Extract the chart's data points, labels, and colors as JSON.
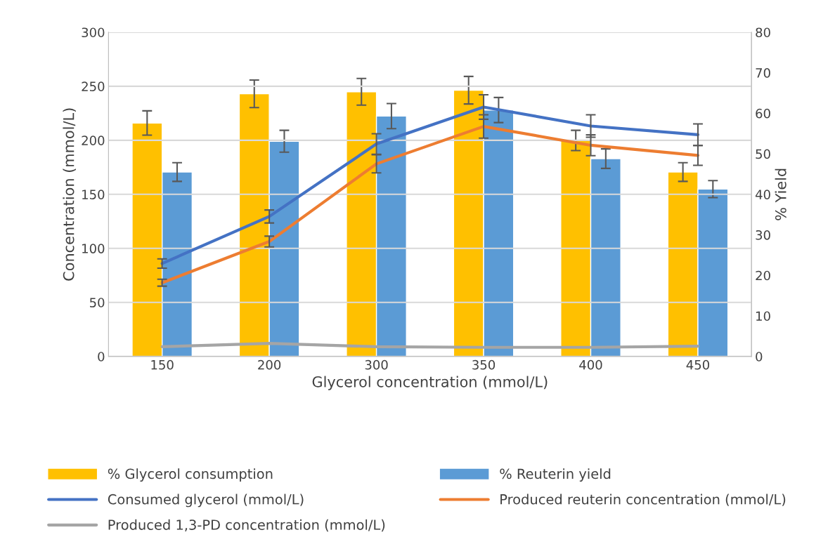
{
  "chart_data": {
    "type": "bar",
    "xlabel": "Glycerol concentration (mmol/L)",
    "ylabel": "Concentration (mmol/L)",
    "y2label": "% Yield",
    "categories": [
      "150",
      "200",
      "300",
      "350",
      "400",
      "450"
    ],
    "series": [
      {
        "name": "% Glycerol consumption",
        "axis": "y2",
        "color": "#ffc000",
        "values": [
          57.6,
          64.8,
          65.3,
          65.7,
          53.3,
          45.5
        ],
        "errors": [
          3,
          3.4,
          3.3,
          3.4,
          2.5,
          2.3
        ]
      },
      {
        "name": "% Reuterin yield",
        "axis": "y2",
        "color": "#5b9bd5",
        "values": [
          45.5,
          53.1,
          59.3,
          60.8,
          48.8,
          41.3
        ],
        "errors": [
          2.3,
          2.7,
          3.1,
          3.1,
          2.4,
          2.1
        ]
      },
      {
        "name": "Consumed glycerol (mmol/L)",
        "type": "line",
        "color": "#4472c4",
        "values": [
          86,
          129.5,
          196.6,
          230.8,
          213.2,
          205.2
        ],
        "errors": [
          4.3,
          6,
          9.5,
          11.3,
          10.4,
          10
        ]
      },
      {
        "name": "Produced reuterin concentration (mmol/L)",
        "type": "line",
        "color": "#ed7d31",
        "values": [
          68.2,
          106.3,
          178.2,
          212.8,
          195.4,
          186
        ],
        "errors": [
          3.2,
          5,
          8.4,
          10.8,
          9.6,
          9.2
        ]
      },
      {
        "name": "Produced 1,3-PD concentration (mmol/L)",
        "type": "line",
        "color": "#a5a5a5",
        "values": [
          9,
          12,
          9,
          8.4,
          8.4,
          9.5
        ]
      }
    ],
    "ylim": [
      0,
      300
    ],
    "yticks": [
      0,
      50,
      100,
      150,
      200,
      250,
      300
    ],
    "y2lim": [
      0,
      80
    ],
    "y2ticks": [
      0,
      10,
      20,
      30,
      40,
      50,
      60,
      70,
      80
    ],
    "grid": "y",
    "legend": "bottom",
    "marker": "none",
    "line_style": "solid"
  }
}
